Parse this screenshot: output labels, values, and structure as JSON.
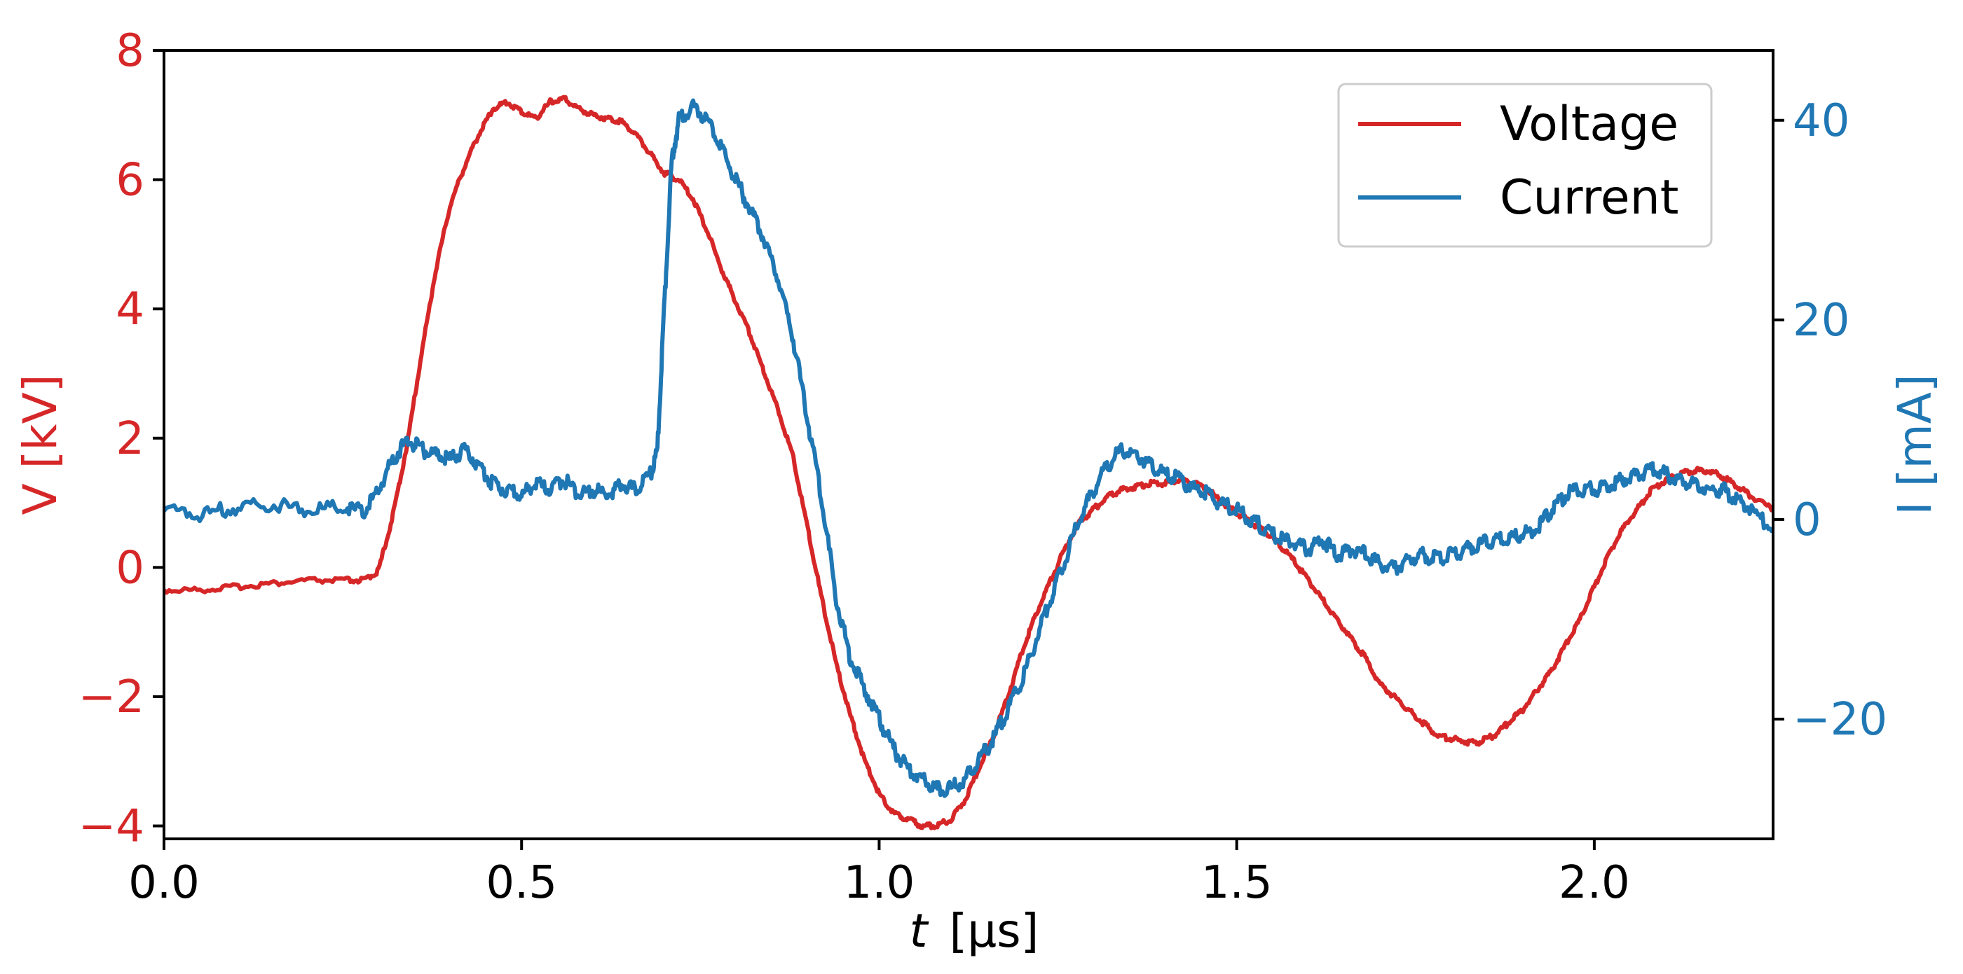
{
  "chart_data": {
    "type": "line",
    "xlabel_var": "t",
    "xlabel_unit": "[μs]",
    "ylabel_left": "V [kV]",
    "ylabel_right": "I [mA]",
    "xlim": [
      0.0,
      2.25
    ],
    "ylim_left": [
      -4.2,
      8.0
    ],
    "ylim_right": [
      -32,
      47
    ],
    "x_ticks": [
      0.0,
      0.5,
      1.0,
      1.5,
      2.0
    ],
    "x_tick_labels": [
      "0.0",
      "0.5",
      "1.0",
      "1.5",
      "2.0"
    ],
    "y_left_ticks": [
      -4,
      -2,
      0,
      2,
      4,
      6,
      8
    ],
    "y_left_tick_labels": [
      "−4",
      "−2",
      "0",
      "2",
      "4",
      "6",
      "8"
    ],
    "y_right_ticks": [
      -20,
      0,
      20,
      40
    ],
    "y_right_tick_labels": [
      "−20",
      "0",
      "20",
      "40"
    ],
    "grid": false,
    "legend_position": "top-right",
    "colors": {
      "voltage": "#d62728",
      "current": "#1f77b4",
      "axes": "#000000"
    },
    "series": [
      {
        "name": "Voltage",
        "axis": "left",
        "x": [
          0.0,
          0.05,
          0.1,
          0.15,
          0.2,
          0.25,
          0.28,
          0.3,
          0.32,
          0.34,
          0.36,
          0.38,
          0.4,
          0.42,
          0.44,
          0.46,
          0.48,
          0.5,
          0.52,
          0.54,
          0.56,
          0.58,
          0.6,
          0.62,
          0.64,
          0.66,
          0.68,
          0.7,
          0.72,
          0.74,
          0.76,
          0.78,
          0.8,
          0.82,
          0.84,
          0.86,
          0.88,
          0.9,
          0.92,
          0.94,
          0.96,
          0.98,
          1.0,
          1.02,
          1.04,
          1.06,
          1.08,
          1.1,
          1.12,
          1.14,
          1.16,
          1.18,
          1.2,
          1.22,
          1.24,
          1.26,
          1.28,
          1.3,
          1.32,
          1.34,
          1.36,
          1.38,
          1.4,
          1.42,
          1.44,
          1.46,
          1.48,
          1.5,
          1.52,
          1.54,
          1.56,
          1.58,
          1.6,
          1.62,
          1.64,
          1.66,
          1.68,
          1.7,
          1.72,
          1.74,
          1.76,
          1.78,
          1.8,
          1.82,
          1.84,
          1.86,
          1.88,
          1.9,
          1.92,
          1.94,
          1.96,
          1.98,
          2.0,
          2.02,
          2.04,
          2.06,
          2.08,
          2.1,
          2.12,
          2.14,
          2.16,
          2.18,
          2.2,
          2.22,
          2.25
        ],
        "y": [
          -0.35,
          -0.35,
          -0.3,
          -0.25,
          -0.2,
          -0.2,
          -0.2,
          -0.05,
          0.8,
          1.9,
          3.3,
          4.6,
          5.6,
          6.2,
          6.7,
          7.1,
          7.2,
          7.05,
          6.95,
          7.2,
          7.25,
          7.1,
          7.0,
          6.95,
          6.9,
          6.7,
          6.4,
          6.1,
          6.0,
          5.7,
          5.2,
          4.6,
          4.1,
          3.6,
          3.0,
          2.4,
          1.7,
          0.6,
          -0.5,
          -1.5,
          -2.3,
          -3.0,
          -3.5,
          -3.8,
          -3.9,
          -4.0,
          -4.0,
          -3.9,
          -3.6,
          -3.1,
          -2.6,
          -2.0,
          -1.3,
          -0.7,
          -0.2,
          0.3,
          0.7,
          0.9,
          1.1,
          1.2,
          1.25,
          1.3,
          1.3,
          1.35,
          1.3,
          1.2,
          1.0,
          0.85,
          0.7,
          0.55,
          0.35,
          0.1,
          -0.2,
          -0.5,
          -0.8,
          -1.1,
          -1.4,
          -1.8,
          -2.0,
          -2.2,
          -2.4,
          -2.6,
          -2.65,
          -2.7,
          -2.7,
          -2.6,
          -2.4,
          -2.2,
          -1.9,
          -1.6,
          -1.2,
          -0.8,
          -0.3,
          0.2,
          0.6,
          0.9,
          1.2,
          1.35,
          1.45,
          1.5,
          1.5,
          1.4,
          1.25,
          1.1,
          0.9
        ]
      },
      {
        "name": "Current",
        "axis": "right",
        "x": [
          0.0,
          0.05,
          0.1,
          0.15,
          0.2,
          0.25,
          0.28,
          0.3,
          0.32,
          0.34,
          0.36,
          0.38,
          0.4,
          0.42,
          0.44,
          0.46,
          0.48,
          0.5,
          0.52,
          0.54,
          0.56,
          0.58,
          0.6,
          0.62,
          0.64,
          0.66,
          0.68,
          0.69,
          0.7,
          0.71,
          0.72,
          0.74,
          0.76,
          0.78,
          0.8,
          0.82,
          0.84,
          0.86,
          0.88,
          0.9,
          0.92,
          0.94,
          0.96,
          0.98,
          1.0,
          1.02,
          1.04,
          1.06,
          1.08,
          1.1,
          1.12,
          1.14,
          1.16,
          1.18,
          1.2,
          1.22,
          1.24,
          1.26,
          1.28,
          1.3,
          1.32,
          1.34,
          1.36,
          1.38,
          1.4,
          1.42,
          1.44,
          1.46,
          1.48,
          1.5,
          1.52,
          1.54,
          1.56,
          1.58,
          1.6,
          1.62,
          1.64,
          1.66,
          1.68,
          1.7,
          1.72,
          1.74,
          1.76,
          1.78,
          1.8,
          1.82,
          1.84,
          1.86,
          1.88,
          1.9,
          1.92,
          1.94,
          1.96,
          1.98,
          2.0,
          2.02,
          2.04,
          2.06,
          2.08,
          2.1,
          2.12,
          2.14,
          2.16,
          2.18,
          2.2,
          2.22,
          2.25
        ],
        "y": [
          1,
          0.5,
          1.2,
          1.5,
          1.0,
          1.2,
          0.8,
          3.0,
          6.0,
          8.0,
          7.0,
          6.5,
          6.0,
          7.0,
          5.5,
          3.5,
          3.0,
          2.5,
          3.5,
          3.0,
          4.0,
          2.5,
          3.0,
          2.5,
          3.5,
          3.0,
          4.5,
          7.0,
          22.0,
          36.0,
          40.0,
          41.5,
          40.0,
          37.0,
          34.0,
          31.0,
          28.0,
          24.0,
          18.0,
          10.0,
          2.0,
          -8.0,
          -14.0,
          -17.0,
          -20.0,
          -23.0,
          -25.0,
          -26.0,
          -27.0,
          -27.0,
          -26.0,
          -24.0,
          -22.0,
          -19.0,
          -16.0,
          -12.0,
          -8.0,
          -4.0,
          0.0,
          3.0,
          5.5,
          7.0,
          6.5,
          5.5,
          4.5,
          4.0,
          3.0,
          2.5,
          1.5,
          1.0,
          0.0,
          -1.0,
          -2.0,
          -2.5,
          -3.0,
          -2.0,
          -3.5,
          -3.0,
          -3.5,
          -4.5,
          -5.0,
          -4.0,
          -3.5,
          -4.0,
          -3.5,
          -3.0,
          -2.5,
          -2.0,
          -2.0,
          -1.5,
          -1.0,
          1.0,
          2.5,
          3.0,
          3.0,
          3.5,
          4.0,
          4.5,
          5.0,
          4.5,
          4.0,
          3.5,
          3.0,
          3.0,
          2.0,
          1.0,
          -1.0
        ]
      }
    ]
  }
}
